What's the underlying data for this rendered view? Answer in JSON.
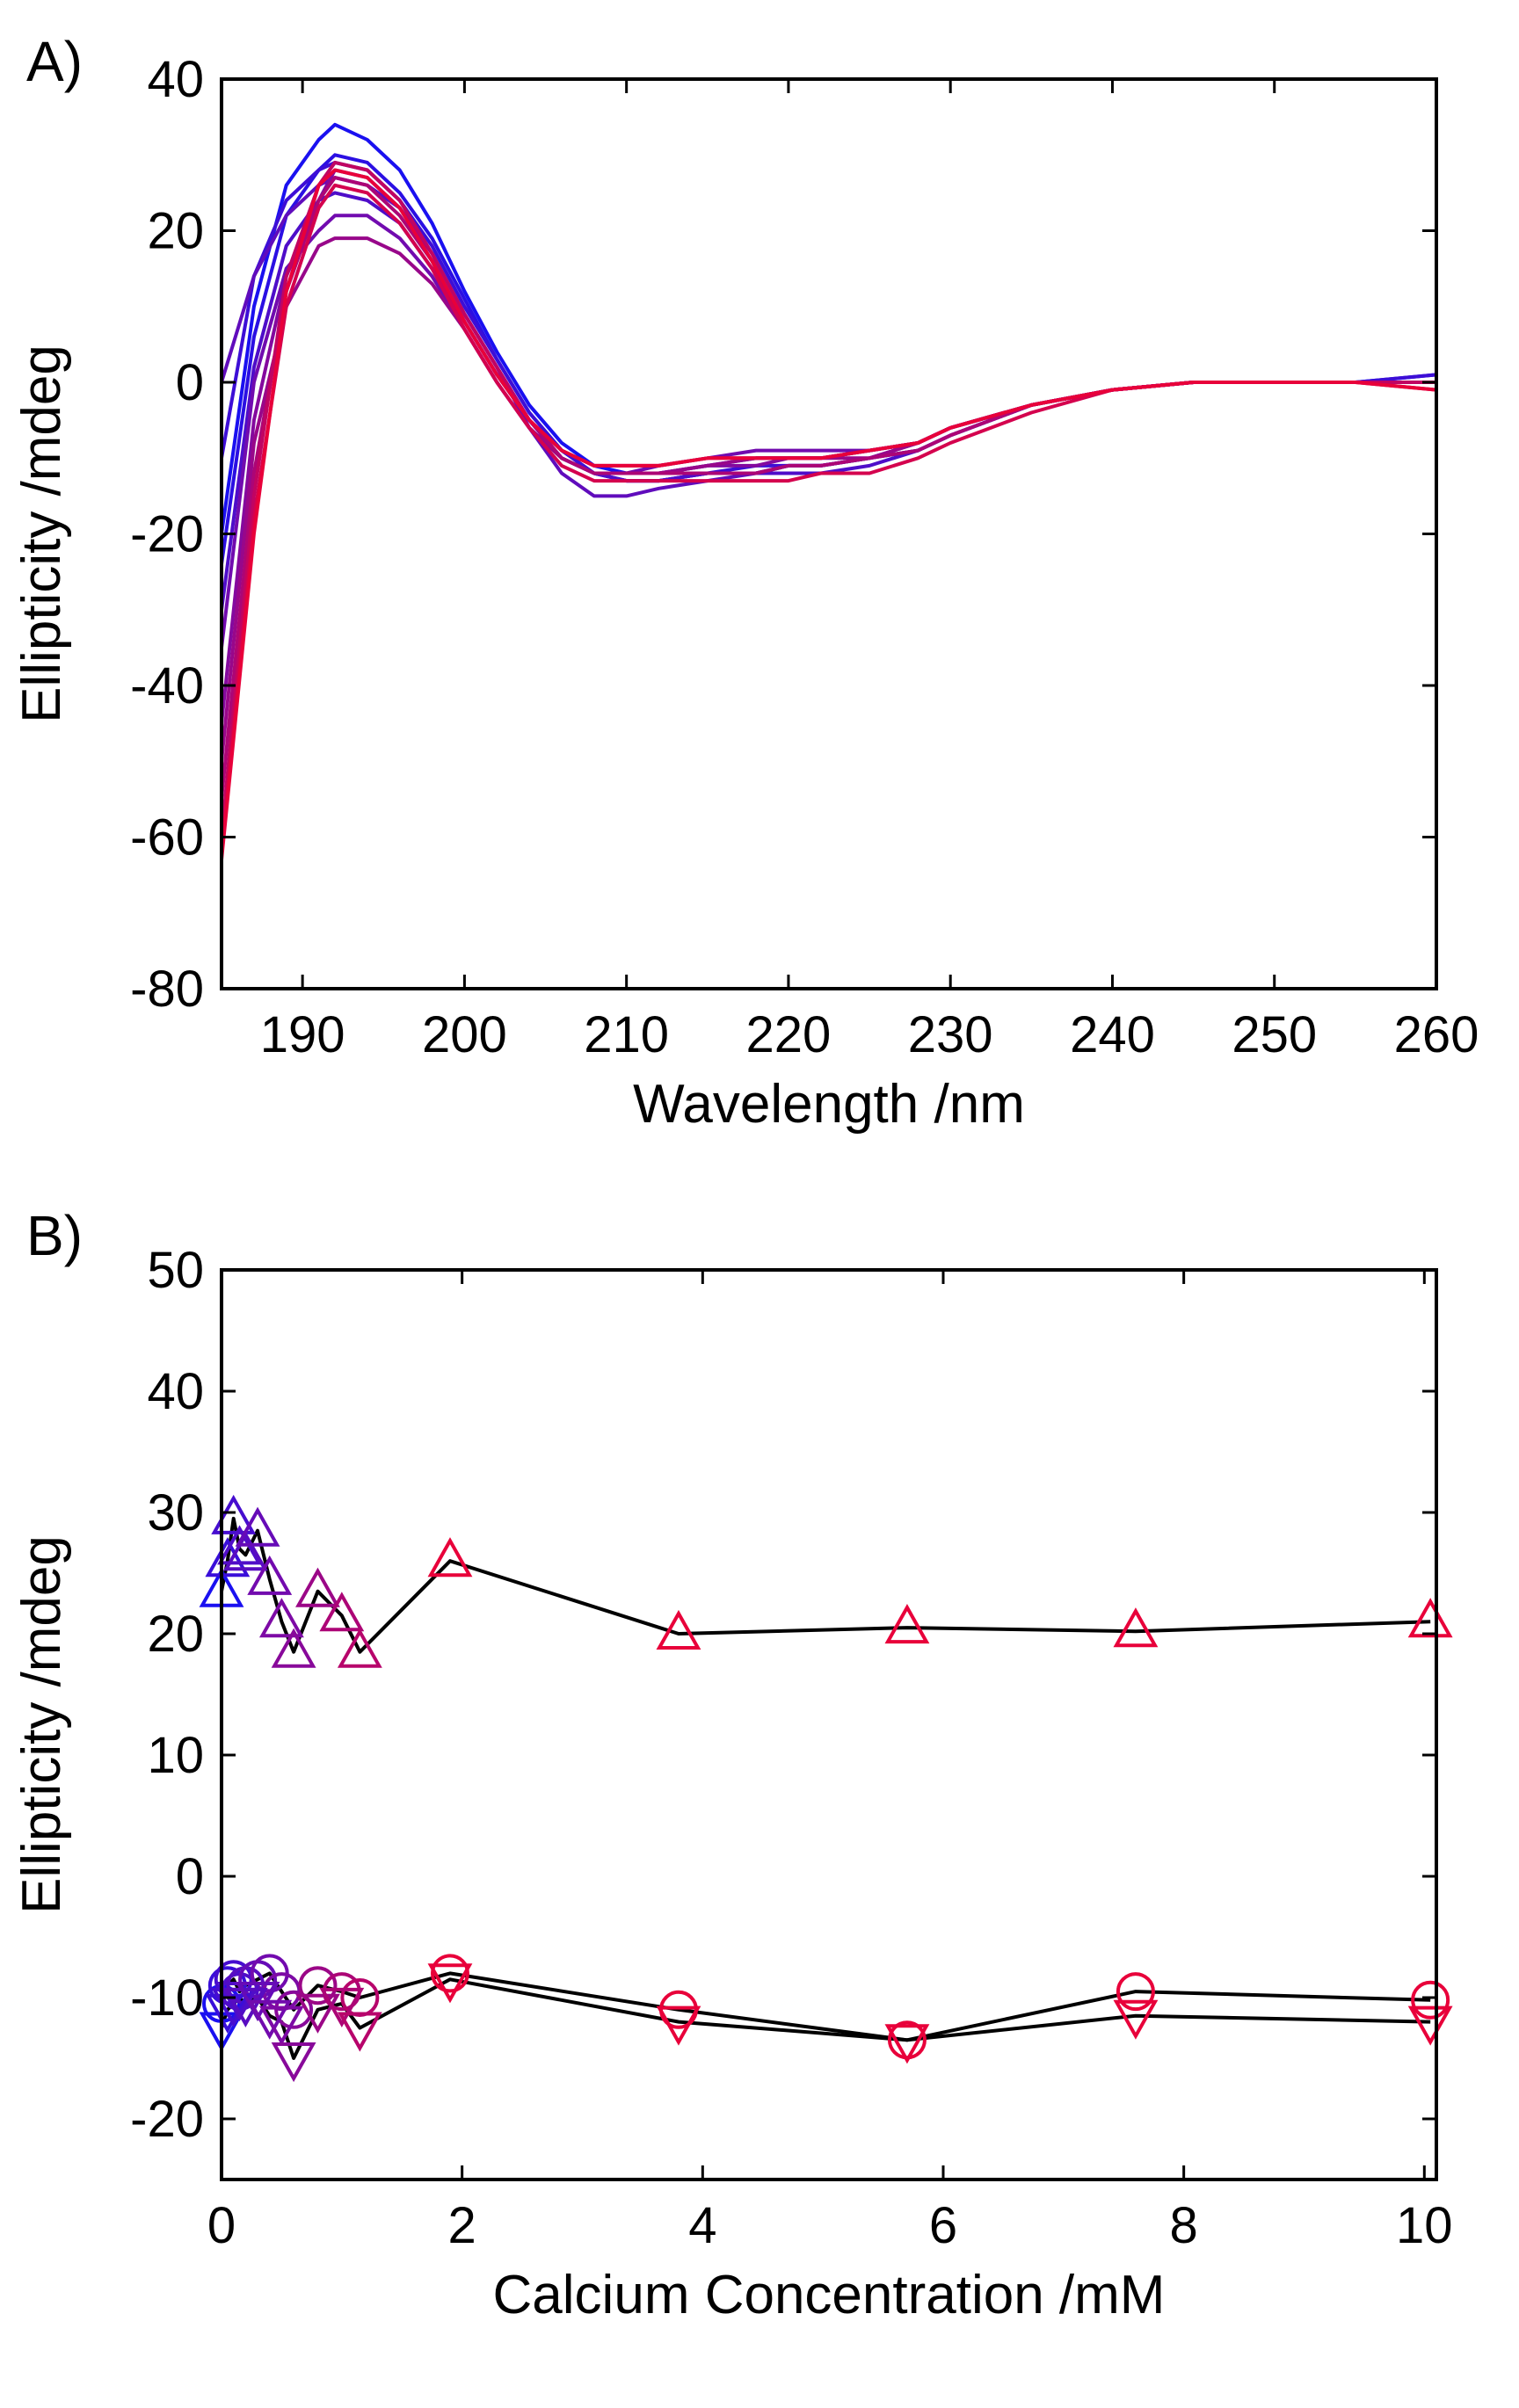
{
  "chart_data": [
    {
      "panel_label": "A)",
      "type": "line",
      "xlabel": "Wavelength /nm",
      "ylabel": "Ellipticity /mdeg",
      "xlim": [
        185,
        260
      ],
      "ylim": [
        -80,
        40
      ],
      "xticks": [
        190,
        200,
        210,
        220,
        230,
        240,
        250,
        260
      ],
      "yticks": [
        -80,
        -60,
        -40,
        -20,
        0,
        20,
        40
      ],
      "grid": false,
      "legend": "none",
      "colors": {
        "start": "#1a10f0",
        "mid": "#7a0aa8",
        "end": "#e8003a"
      },
      "x": [
        185,
        187,
        189,
        191,
        192,
        194,
        196,
        198,
        200,
        202,
        204,
        206,
        208,
        210,
        212,
        215,
        218,
        220,
        222,
        225,
        228,
        230,
        235,
        240,
        245,
        250,
        255,
        260
      ],
      "series": [
        {
          "values": [
            -20,
            10,
            26,
            32,
            34,
            32,
            28,
            21,
            12,
            4,
            -3,
            -8,
            -11,
            -12,
            -12,
            -11,
            -10,
            -10,
            -10,
            -9,
            -8,
            -6,
            -3,
            -1,
            0,
            0,
            0,
            1
          ]
        },
        {
          "values": [
            -24,
            6,
            22,
            28,
            30,
            29,
            25,
            19,
            11,
            3,
            -4,
            -9,
            -12,
            -13,
            -13,
            -12,
            -12,
            -11,
            -11,
            -10,
            -9,
            -7,
            -3,
            -1,
            0,
            0,
            0,
            0
          ]
        },
        {
          "values": [
            -10,
            14,
            24,
            28,
            29,
            28,
            24,
            18,
            10,
            3,
            -4,
            -9,
            -12,
            -13,
            -13,
            -12,
            -11,
            -11,
            -11,
            -10,
            -8,
            -6,
            -3,
            -1,
            0,
            0,
            0,
            1
          ]
        },
        {
          "values": [
            -30,
            2,
            18,
            24,
            25,
            24,
            21,
            15,
            8,
            1,
            -5,
            -10,
            -12,
            -13,
            -13,
            -12,
            -12,
            -12,
            -12,
            -11,
            -9,
            -7,
            -3,
            -1,
            0,
            0,
            0,
            0
          ]
        },
        {
          "values": [
            0,
            14,
            22,
            26,
            27,
            26,
            23,
            17,
            9,
            2,
            -6,
            -12,
            -15,
            -15,
            -14,
            -13,
            -12,
            -11,
            -11,
            -10,
            -9,
            -7,
            -3,
            -1,
            0,
            0,
            0,
            0
          ]
        },
        {
          "values": [
            -35,
            0,
            15,
            20,
            22,
            22,
            19,
            14,
            7,
            0,
            -6,
            -10,
            -12,
            -12,
            -11,
            -10,
            -9,
            -9,
            -9,
            -9,
            -8,
            -6,
            -3,
            -1,
            0,
            0,
            0,
            0
          ]
        },
        {
          "values": [
            -45,
            -5,
            14,
            24,
            28,
            27,
            23,
            17,
            9,
            2,
            -5,
            -10,
            -12,
            -12,
            -12,
            -11,
            -11,
            -10,
            -10,
            -9,
            -8,
            -6,
            -3,
            -1,
            0,
            0,
            0,
            0
          ]
        },
        {
          "values": [
            -50,
            -8,
            10,
            18,
            19,
            19,
            17,
            13,
            7,
            0,
            -6,
            -10,
            -12,
            -12,
            -12,
            -11,
            -10,
            -10,
            -10,
            -10,
            -8,
            -6,
            -3,
            -1,
            0,
            0,
            0,
            0
          ]
        },
        {
          "values": [
            -55,
            -12,
            12,
            24,
            27,
            26,
            22,
            16,
            8,
            1,
            -5,
            -10,
            -12,
            -12,
            -12,
            -12,
            -12,
            -11,
            -11,
            -10,
            -9,
            -7,
            -3,
            -1,
            0,
            0,
            0,
            0
          ]
        },
        {
          "values": [
            -60,
            -15,
            14,
            26,
            29,
            28,
            24,
            17,
            9,
            2,
            -5,
            -9,
            -11,
            -11,
            -11,
            -10,
            -10,
            -10,
            -10,
            -9,
            -8,
            -6,
            -3,
            -1,
            0,
            0,
            0,
            0
          ]
        },
        {
          "values": [
            -62,
            -18,
            10,
            23,
            26,
            25,
            21,
            15,
            7,
            0,
            -6,
            -11,
            -13,
            -13,
            -13,
            -13,
            -13,
            -13,
            -12,
            -12,
            -10,
            -8,
            -4,
            -1,
            0,
            0,
            0,
            -1
          ]
        },
        {
          "values": [
            -63,
            -20,
            12,
            26,
            28,
            27,
            23,
            16,
            8,
            1,
            -5,
            -9,
            -11,
            -11,
            -11,
            -10,
            -10,
            -10,
            -10,
            -9,
            -8,
            -6,
            -3,
            -1,
            0,
            0,
            0,
            -1
          ]
        }
      ]
    },
    {
      "panel_label": "B)",
      "type": "scatter",
      "xlabel": "Calcium Concentration /mM",
      "ylabel": "Ellipticity /mdeg",
      "xlim": [
        0,
        10.1
      ],
      "ylim": [
        -25,
        50
      ],
      "xticks": [
        0,
        2,
        4,
        6,
        8,
        10
      ],
      "yticks": [
        -20,
        -10,
        0,
        10,
        20,
        30,
        40,
        50
      ],
      "grid": false,
      "legend": "none",
      "x": [
        0.0,
        0.05,
        0.1,
        0.15,
        0.2,
        0.3,
        0.4,
        0.5,
        0.6,
        0.8,
        1.0,
        1.15,
        1.9,
        3.8,
        5.7,
        7.6,
        10.05
      ],
      "series": [
        {
          "marker": "triangle-up",
          "values": [
            23.5,
            26.0,
            29.5,
            27.0,
            26.5,
            28.5,
            24.5,
            21.0,
            18.5,
            23.5,
            21.5,
            18.5,
            26.0,
            20.0,
            20.5,
            20.2,
            21.0
          ]
        },
        {
          "marker": "circle",
          "values": [
            -10.5,
            -9.0,
            -8.5,
            -9.5,
            -9.0,
            -8.5,
            -8.0,
            -9.5,
            -11.0,
            -9.0,
            -9.5,
            -10.0,
            -8.0,
            -11.0,
            -13.5,
            -9.5,
            -10.2
          ]
        },
        {
          "marker": "triangle-down",
          "values": [
            -12.5,
            -11.0,
            -10.5,
            -10.0,
            -10.5,
            -10.0,
            -11.5,
            -12.0,
            -15.0,
            -11.0,
            -10.5,
            -12.5,
            -8.5,
            -12.0,
            -13.5,
            -11.5,
            -12.0
          ]
        }
      ]
    }
  ]
}
